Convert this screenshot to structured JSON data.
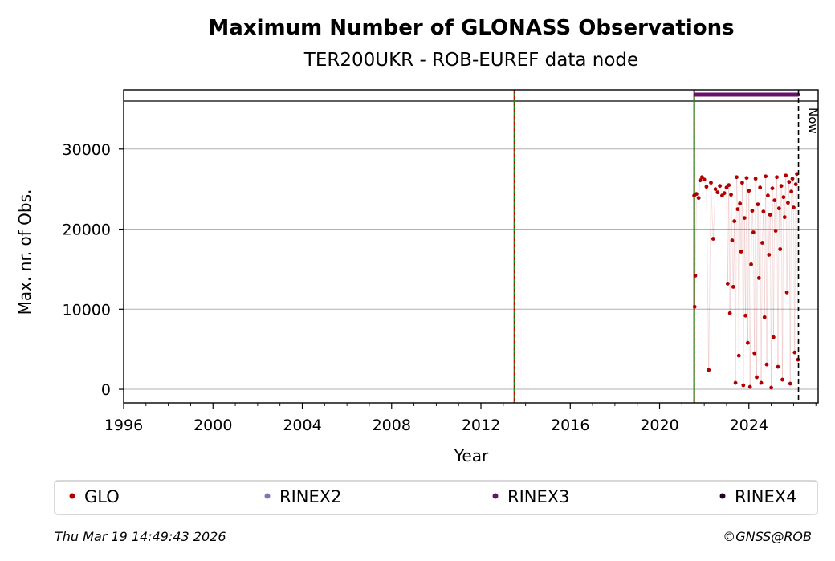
{
  "chart_data": {
    "type": "scatter",
    "title": "Maximum Number of GLONASS Observations",
    "subtitle": "TER200UKR - ROB-EUREF data node",
    "xlabel": "Year",
    "ylabel": "Max. nr. of Obs.",
    "xlim": [
      1996,
      2027.1
    ],
    "ylim": [
      -1700,
      37400
    ],
    "x_ticks": [
      1996,
      2000,
      2004,
      2008,
      2012,
      2016,
      2020,
      2024
    ],
    "y_ticks": [
      0,
      10000,
      20000,
      30000
    ],
    "grid": "horizontal",
    "now_label": "Now",
    "now_x": 2026.22,
    "equipment_change_lines": [
      2013.5,
      2021.55
    ],
    "rinex_bar": {
      "name": "RINEX3",
      "start": 2021.6,
      "end": 2026.2,
      "y": 36800
    },
    "limit_line_y": 36000,
    "series": [
      {
        "name": "GLO",
        "color": "#b00000",
        "points": [
          [
            2021.55,
            24200
          ],
          [
            2021.57,
            10300
          ],
          [
            2021.6,
            14200
          ],
          [
            2021.65,
            24400
          ],
          [
            2021.75,
            23900
          ],
          [
            2021.82,
            26100
          ],
          [
            2021.9,
            26500
          ],
          [
            2022.0,
            26200
          ],
          [
            2022.1,
            25300
          ],
          [
            2022.2,
            2400
          ],
          [
            2022.3,
            25800
          ],
          [
            2022.4,
            18800
          ],
          [
            2022.5,
            25000
          ],
          [
            2022.6,
            24600
          ],
          [
            2022.7,
            25400
          ],
          [
            2022.8,
            24200
          ],
          [
            2022.9,
            24500
          ],
          [
            2023.0,
            25200
          ],
          [
            2023.05,
            13200
          ],
          [
            2023.1,
            25500
          ],
          [
            2023.15,
            9500
          ],
          [
            2023.2,
            24300
          ],
          [
            2023.25,
            18600
          ],
          [
            2023.3,
            12800
          ],
          [
            2023.35,
            21000
          ],
          [
            2023.4,
            800
          ],
          [
            2023.45,
            26500
          ],
          [
            2023.5,
            22500
          ],
          [
            2023.55,
            4200
          ],
          [
            2023.6,
            23200
          ],
          [
            2023.65,
            17200
          ],
          [
            2023.7,
            25800
          ],
          [
            2023.75,
            500
          ],
          [
            2023.8,
            21400
          ],
          [
            2023.85,
            9200
          ],
          [
            2023.9,
            26400
          ],
          [
            2023.95,
            5800
          ],
          [
            2024.0,
            24800
          ],
          [
            2024.05,
            300
          ],
          [
            2024.1,
            15600
          ],
          [
            2024.15,
            22300
          ],
          [
            2024.2,
            19600
          ],
          [
            2024.25,
            4500
          ],
          [
            2024.3,
            26300
          ],
          [
            2024.35,
            1500
          ],
          [
            2024.4,
            23100
          ],
          [
            2024.45,
            13900
          ],
          [
            2024.5,
            25200
          ],
          [
            2024.55,
            800
          ],
          [
            2024.6,
            18300
          ],
          [
            2024.65,
            22200
          ],
          [
            2024.7,
            9000
          ],
          [
            2024.75,
            26600
          ],
          [
            2024.8,
            3100
          ],
          [
            2024.85,
            24200
          ],
          [
            2024.9,
            16800
          ],
          [
            2024.95,
            21800
          ],
          [
            2025.0,
            200
          ],
          [
            2025.05,
            25100
          ],
          [
            2025.1,
            6500
          ],
          [
            2025.15,
            23600
          ],
          [
            2025.2,
            19800
          ],
          [
            2025.25,
            26500
          ],
          [
            2025.3,
            2800
          ],
          [
            2025.35,
            22600
          ],
          [
            2025.4,
            17500
          ],
          [
            2025.45,
            25400
          ],
          [
            2025.5,
            1200
          ],
          [
            2025.55,
            24000
          ],
          [
            2025.6,
            21500
          ],
          [
            2025.65,
            26700
          ],
          [
            2025.7,
            12100
          ],
          [
            2025.75,
            23300
          ],
          [
            2025.8,
            25900
          ],
          [
            2025.85,
            700
          ],
          [
            2025.9,
            24700
          ],
          [
            2025.95,
            26300
          ],
          [
            2026.0,
            22700
          ],
          [
            2026.05,
            4600
          ],
          [
            2026.1,
            25600
          ],
          [
            2026.15,
            26900
          ],
          [
            2026.2,
            3700
          ]
        ]
      }
    ],
    "legend": [
      {
        "name": "GLO",
        "color": "#b00000"
      },
      {
        "name": "RINEX2",
        "color": "#7a78b8"
      },
      {
        "name": "RINEX3",
        "color": "#6a0f6b"
      },
      {
        "name": "RINEX4",
        "color": "#200520"
      }
    ]
  },
  "footer": {
    "timestamp": "Thu Mar 19 14:49:43 2026",
    "credit": "©GNSS@ROB"
  }
}
